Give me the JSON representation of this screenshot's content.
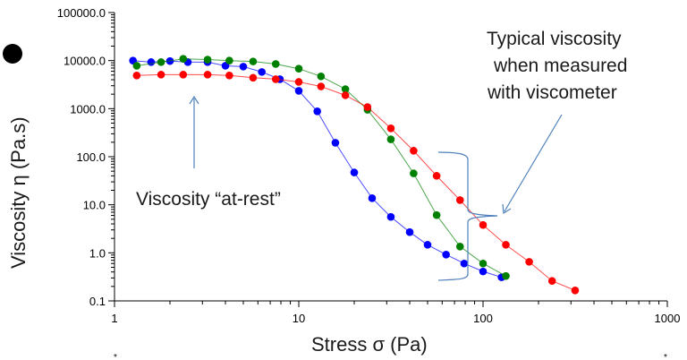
{
  "chart_data": {
    "type": "line",
    "title": "",
    "xlabel": "Stress σ (Pa)",
    "ylabel": "Viscosity η (Pa.s)",
    "xscale": "log",
    "yscale": "log",
    "xlim": [
      1,
      1000
    ],
    "ylim": [
      0.1,
      100000
    ],
    "grid": false,
    "legend": "none",
    "x_tick_labels": [
      "1",
      "10",
      "100",
      "1000"
    ],
    "y_tick_labels": [
      "0.1",
      "1.0",
      "10.0",
      "100.0",
      "1000.0",
      "10000.0",
      "100000.0"
    ],
    "series": [
      {
        "color": "#0000ff",
        "x": [
          1.26,
          1.58,
          2.0,
          2.5,
          3.2,
          4.0,
          5.0,
          6.3,
          7.9,
          10,
          12.6,
          15.8,
          20,
          25,
          31.6,
          40,
          50,
          63,
          79,
          100,
          126
        ],
        "y": [
          10000,
          9300,
          9800,
          9300,
          9300,
          7800,
          7500,
          5800,
          4100,
          2350,
          880,
          195,
          47,
          13.7,
          5.6,
          2.7,
          1.47,
          0.92,
          0.6,
          0.41,
          0.31
        ]
      },
      {
        "color": "#008000",
        "x": [
          1.32,
          1.79,
          2.36,
          3.2,
          4.2,
          5.65,
          7.5,
          10,
          13.2,
          17.9,
          23.6,
          31.6,
          42,
          56,
          75,
          100,
          133
        ],
        "y": [
          7800,
          9300,
          10900,
          10500,
          10000,
          9600,
          8500,
          6800,
          4700,
          2550,
          950,
          230,
          45,
          6.1,
          1.35,
          0.6,
          0.33
        ]
      },
      {
        "color": "#ff0000",
        "x": [
          1.32,
          1.79,
          2.36,
          3.2,
          4.2,
          5.65,
          7.5,
          10,
          13.2,
          17.9,
          23.6,
          31.6,
          42,
          56,
          75,
          100,
          133,
          178,
          237,
          316
        ],
        "y": [
          4900,
          5100,
          5100,
          5100,
          4900,
          4400,
          4100,
          3600,
          2900,
          1900,
          1080,
          390,
          133,
          40,
          12.5,
          3.8,
          1.47,
          0.65,
          0.26,
          0.165
        ]
      }
    ],
    "annotations": {
      "at_rest": "Viscosity “at-rest”",
      "viscometer": [
        "Typical viscosity",
        "when measured",
        "with viscometer"
      ]
    }
  },
  "colors": {
    "annotation_arrow": "#4f81bd"
  }
}
